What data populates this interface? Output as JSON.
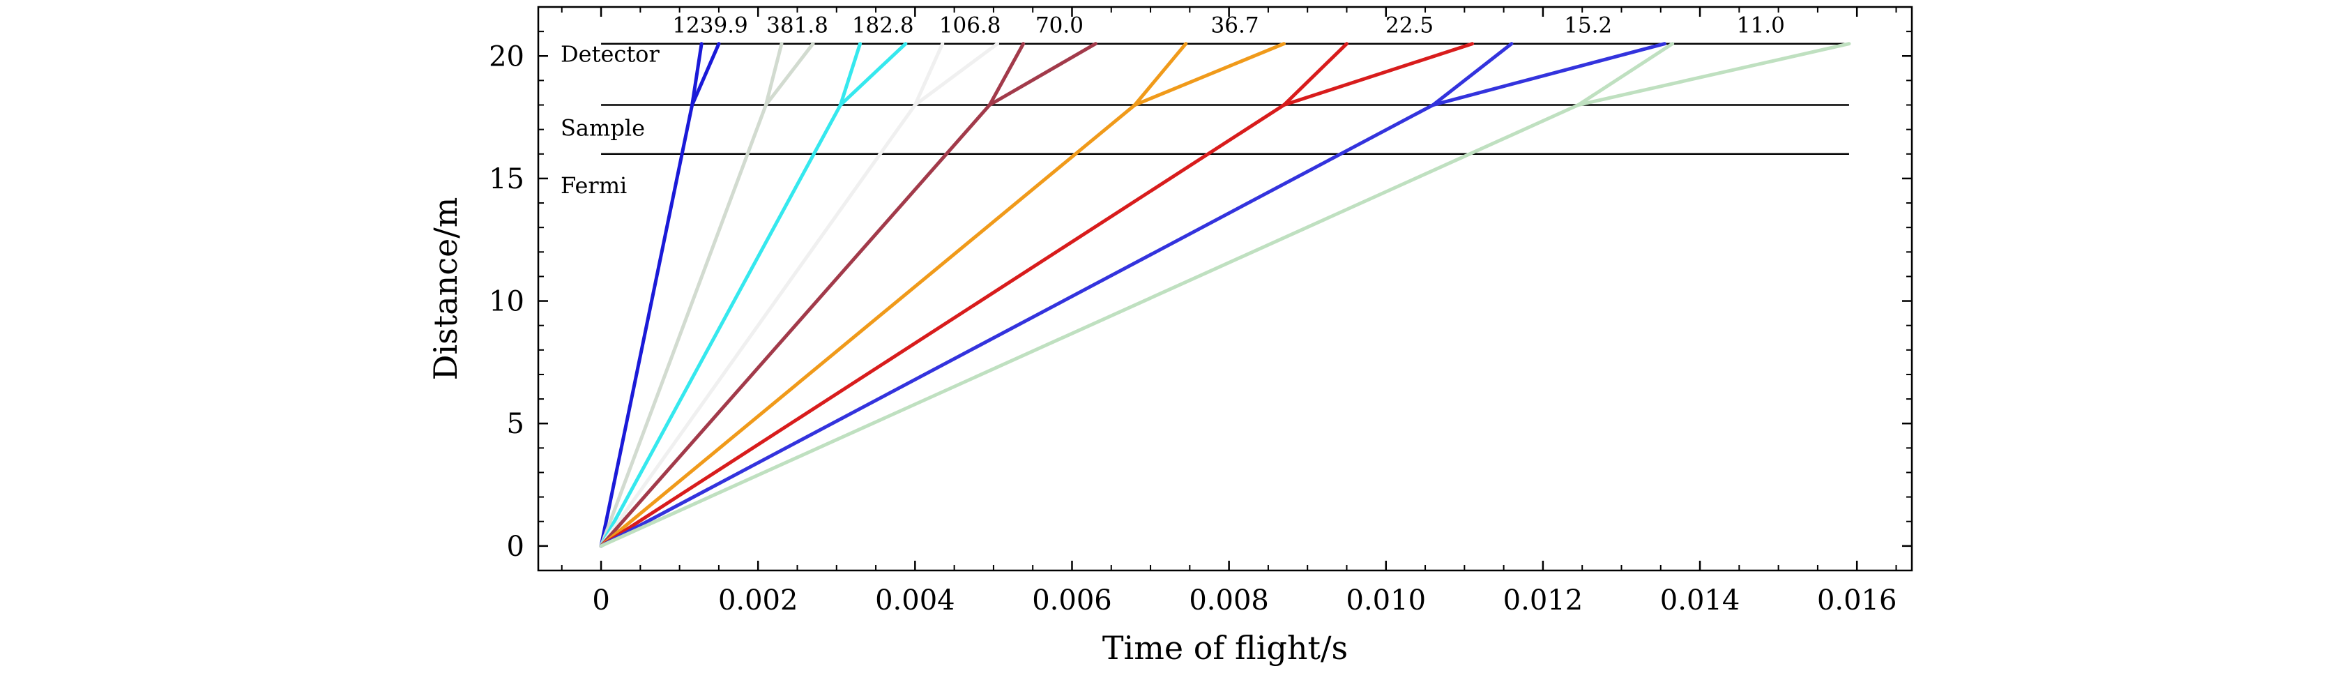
{
  "chart_data": {
    "type": "line",
    "xlabel": "Time of flight/s",
    "ylabel": "Distance/m",
    "xlim": [
      -0.0008,
      0.0167
    ],
    "ylim": [
      -1.0,
      22.0
    ],
    "x_ticks": [
      0,
      0.002,
      0.004,
      0.006,
      0.008,
      0.01,
      0.012,
      0.014,
      0.016
    ],
    "x_tick_labels": [
      "0",
      "0.002",
      "0.004",
      "0.006",
      "0.008",
      "0.010",
      "0.012",
      "0.014",
      "0.016"
    ],
    "y_ticks": [
      0,
      5,
      10,
      15,
      20
    ],
    "y_tick_labels": [
      "0",
      "5",
      "10",
      "15",
      "20"
    ],
    "grid": false,
    "legend": "none",
    "levels": [
      {
        "name": "Detector",
        "y": 20.5,
        "x_range": [
          0,
          0.0159
        ]
      },
      {
        "name": "Sample",
        "y": 18.0,
        "x_range": [
          0,
          0.0159
        ]
      },
      {
        "name": "Fermi",
        "y": 16.0,
        "x_range": [
          0,
          0.0159
        ]
      }
    ],
    "series": [
      {
        "label": "1239.9",
        "color": "#1a1ad8",
        "origin": [
          0,
          0
        ],
        "sample": [
          0.00116,
          18.0
        ],
        "ends": [
          0.00128,
          0.0015
        ],
        "end_y": 20.5
      },
      {
        "label": "381.8",
        "color": "#d2dbd0",
        "origin": [
          0,
          0
        ],
        "sample": [
          0.0021,
          18.0
        ],
        "ends": [
          0.0023,
          0.0027
        ],
        "end_y": 20.5
      },
      {
        "label": "182.8",
        "color": "#35e8ee",
        "origin": [
          0,
          0
        ],
        "sample": [
          0.00305,
          18.0
        ],
        "ends": [
          0.0033,
          0.00388
        ],
        "end_y": 20.5
      },
      {
        "label": "106.8",
        "color": "#f0f0f0",
        "origin": [
          0,
          0
        ],
        "sample": [
          0.004,
          18.0
        ],
        "ends": [
          0.00435,
          0.00505
        ],
        "end_y": 20.5
      },
      {
        "label": "70.0",
        "color": "#a23a4a",
        "origin": [
          0,
          0
        ],
        "sample": [
          0.00495,
          18.0
        ],
        "ends": [
          0.00538,
          0.0063
        ],
        "end_y": 20.5
      },
      {
        "label": "36.7",
        "color": "#f09a1a",
        "origin": [
          0,
          0
        ],
        "sample": [
          0.0068,
          18.0
        ],
        "ends": [
          0.00745,
          0.0087
        ],
        "end_y": 20.5
      },
      {
        "label": "22.5",
        "color": "#d81c1c",
        "origin": [
          0,
          0
        ],
        "sample": [
          0.0087,
          18.0
        ],
        "ends": [
          0.0095,
          0.0111
        ],
        "end_y": 20.5
      },
      {
        "label": "15.2",
        "color": "#3333dd",
        "origin": [
          0,
          0
        ],
        "sample": [
          0.0106,
          18.0
        ],
        "ends": [
          0.0116,
          0.01355
        ],
        "end_y": 20.5
      },
      {
        "label": "11.0",
        "color": "#bfe0c0",
        "origin": [
          0,
          0
        ],
        "sample": [
          0.01245,
          18.0
        ],
        "ends": [
          0.01365,
          0.0159
        ],
        "end_y": 20.5
      }
    ]
  }
}
